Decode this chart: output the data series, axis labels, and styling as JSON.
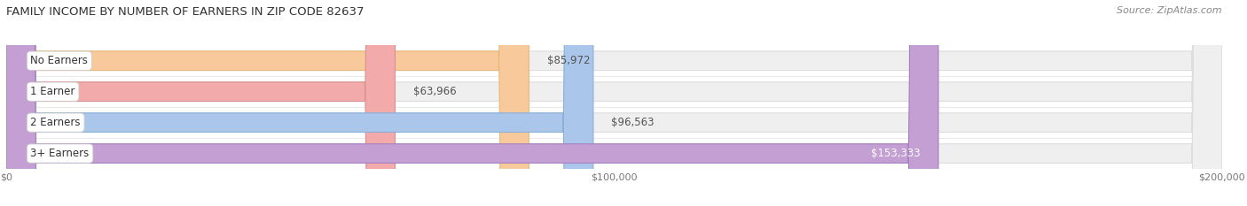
{
  "title": "FAMILY INCOME BY NUMBER OF EARNERS IN ZIP CODE 82637",
  "source": "Source: ZipAtlas.com",
  "categories": [
    "No Earners",
    "1 Earner",
    "2 Earners",
    "3+ Earners"
  ],
  "values": [
    85972,
    63966,
    96563,
    153333
  ],
  "bar_colors": [
    "#f7c99b",
    "#f2aaaa",
    "#aac6ea",
    "#c49fd4"
  ],
  "bar_border_colors": [
    "#e8b87a",
    "#d89090",
    "#8ab0d8",
    "#a880c0"
  ],
  "value_labels": [
    "$85,972",
    "$63,966",
    "$96,563",
    "$153,333"
  ],
  "value_label_inside": [
    false,
    false,
    false,
    true
  ],
  "xlim": [
    0,
    200000
  ],
  "xtick_values": [
    0,
    100000,
    200000
  ],
  "xtick_labels": [
    "$0",
    "$100,000",
    "$200,000"
  ],
  "background_color": "#ffffff",
  "bar_bg_color": "#efefef",
  "bar_bg_border_color": "#dddddd",
  "title_fontsize": 9.5,
  "source_fontsize": 8,
  "label_fontsize": 8.5,
  "value_fontsize": 8.5,
  "bar_height": 0.62,
  "bar_gap": 0.38
}
